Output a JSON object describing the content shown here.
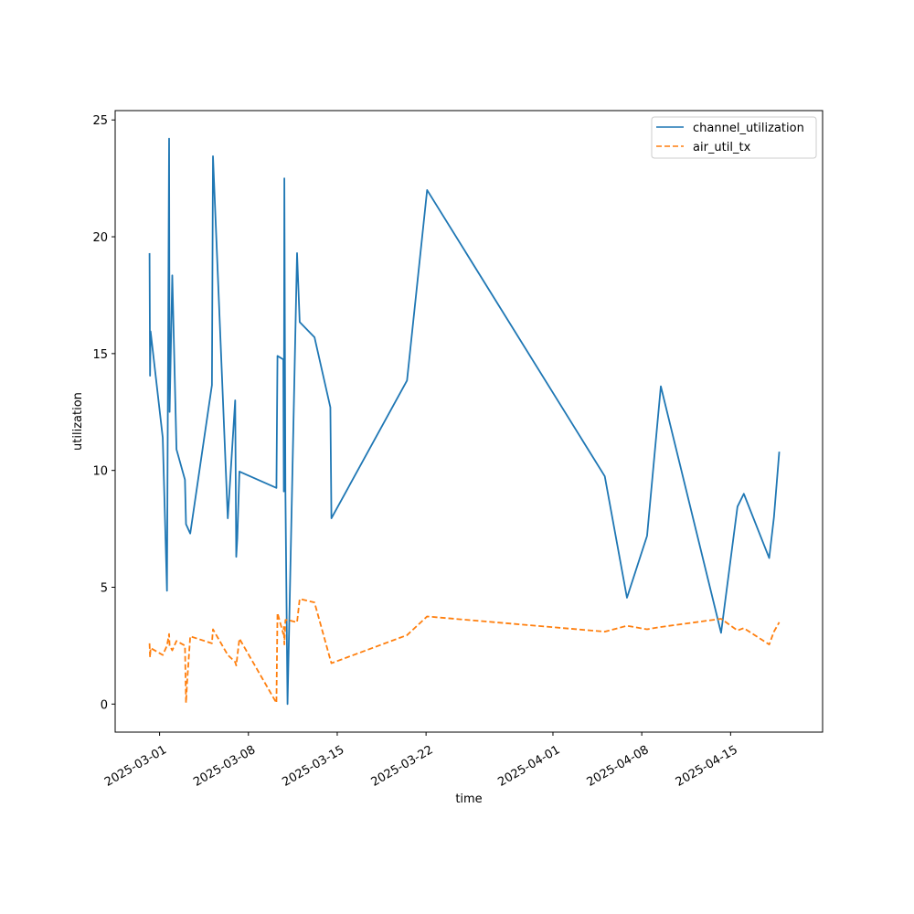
{
  "chart_data": {
    "type": "line",
    "xlabel": "time",
    "ylabel": "utilization",
    "x_type": "date",
    "xlim": [
      "2025-02-25T12:00",
      "2025-04-22T06:00"
    ],
    "ylim": [
      -1.2,
      25.4
    ],
    "x_ticks": [
      "2025-03-01",
      "2025-03-08",
      "2025-03-15",
      "2025-03-22",
      "2025-04-01",
      "2025-04-08",
      "2025-04-15"
    ],
    "y_ticks": [
      0,
      5,
      10,
      15,
      20,
      25
    ],
    "legend_position": "top-right",
    "grid": false,
    "series": [
      {
        "name": "channel_utilization",
        "color": "#1f77b4",
        "style": "solid",
        "points": [
          [
            "2025-02-28T05:00",
            19.3
          ],
          [
            "2025-02-28T06:00",
            14.05
          ],
          [
            "2025-02-28T07:00",
            15.95
          ],
          [
            "2025-03-01T06:00",
            11.4
          ],
          [
            "2025-03-01T14:00",
            4.85
          ],
          [
            "2025-03-01T18:00",
            24.2
          ],
          [
            "2025-03-01T19:00",
            12.5
          ],
          [
            "2025-03-02T00:00",
            18.35
          ],
          [
            "2025-03-02T08:00",
            10.9
          ],
          [
            "2025-03-03T00:00",
            9.6
          ],
          [
            "2025-03-03T02:00",
            7.7
          ],
          [
            "2025-03-03T10:00",
            7.3
          ],
          [
            "2025-03-05T03:00",
            13.65
          ],
          [
            "2025-03-05T05:00",
            23.45
          ],
          [
            "2025-03-06T09:00",
            7.95
          ],
          [
            "2025-03-06T23:00",
            13.0
          ],
          [
            "2025-03-07T01:00",
            6.3
          ],
          [
            "2025-03-07T03:00",
            7.1
          ],
          [
            "2025-03-07T07:00",
            9.95
          ],
          [
            "2025-03-10T05:00",
            9.25
          ],
          [
            "2025-03-10T07:00",
            14.9
          ],
          [
            "2025-03-10T18:00",
            14.75
          ],
          [
            "2025-03-10T19:00",
            9.1
          ],
          [
            "2025-03-10T20:00",
            22.5
          ],
          [
            "2025-03-10T22:00",
            9.1
          ],
          [
            "2025-03-11T02:00",
            0.0
          ],
          [
            "2025-03-11T20:00",
            19.3
          ],
          [
            "2025-03-12T01:00",
            16.35
          ],
          [
            "2025-03-13T05:00",
            15.7
          ],
          [
            "2025-03-14T11:00",
            12.7
          ],
          [
            "2025-03-14T13:00",
            7.95
          ],
          [
            "2025-03-20T12:00",
            13.85
          ],
          [
            "2025-03-22T02:00",
            22.0
          ],
          [
            "2025-04-05T02:00",
            9.75
          ],
          [
            "2025-04-06T20:00",
            4.55
          ],
          [
            "2025-04-08T10:00",
            7.2
          ],
          [
            "2025-04-09T12:00",
            13.6
          ],
          [
            "2025-04-14T06:00",
            3.05
          ],
          [
            "2025-04-15T13:00",
            8.45
          ],
          [
            "2025-04-16T01:00",
            9.0
          ],
          [
            "2025-04-18T01:00",
            6.25
          ],
          [
            "2025-04-18T10:00",
            8.0
          ],
          [
            "2025-04-18T20:00",
            10.8
          ]
        ]
      },
      {
        "name": "air_util_tx",
        "color": "#ff7f0e",
        "style": "dashed",
        "points": [
          [
            "2025-02-28T05:00",
            2.6
          ],
          [
            "2025-02-28T06:00",
            2.0
          ],
          [
            "2025-02-28T07:00",
            2.4
          ],
          [
            "2025-03-01T06:00",
            2.1
          ],
          [
            "2025-03-01T14:00",
            2.5
          ],
          [
            "2025-03-01T18:00",
            3.0
          ],
          [
            "2025-03-01T19:00",
            2.5
          ],
          [
            "2025-03-02T00:00",
            2.3
          ],
          [
            "2025-03-02T08:00",
            2.7
          ],
          [
            "2025-03-03T00:00",
            2.5
          ],
          [
            "2025-03-03T02:00",
            0.05
          ],
          [
            "2025-03-03T04:00",
            0.9
          ],
          [
            "2025-03-03T10:00",
            2.9
          ],
          [
            "2025-03-05T03:00",
            2.6
          ],
          [
            "2025-03-05T05:00",
            3.2
          ],
          [
            "2025-03-06T09:00",
            2.1
          ],
          [
            "2025-03-06T23:00",
            1.8
          ],
          [
            "2025-03-07T01:00",
            1.65
          ],
          [
            "2025-03-07T07:00",
            2.8
          ],
          [
            "2025-03-10T05:00",
            0.05
          ],
          [
            "2025-03-10T07:00",
            3.9
          ],
          [
            "2025-03-10T18:00",
            3.0
          ],
          [
            "2025-03-10T19:00",
            3.3
          ],
          [
            "2025-03-10T20:00",
            2.55
          ],
          [
            "2025-03-10T22:00",
            3.6
          ],
          [
            "2025-03-11T02:00",
            3.6
          ],
          [
            "2025-03-11T20:00",
            3.5
          ],
          [
            "2025-03-12T01:00",
            4.5
          ],
          [
            "2025-03-13T05:00",
            4.35
          ],
          [
            "2025-03-14T11:00",
            1.9
          ],
          [
            "2025-03-14T13:00",
            1.75
          ],
          [
            "2025-03-20T12:00",
            2.95
          ],
          [
            "2025-03-22T02:00",
            3.75
          ],
          [
            "2025-04-05T02:00",
            3.1
          ],
          [
            "2025-04-06T20:00",
            3.35
          ],
          [
            "2025-04-08T10:00",
            3.2
          ],
          [
            "2025-04-09T12:00",
            3.3
          ],
          [
            "2025-04-14T06:00",
            3.65
          ],
          [
            "2025-04-15T13:00",
            3.15
          ],
          [
            "2025-04-16T01:00",
            3.25
          ],
          [
            "2025-04-18T01:00",
            2.55
          ],
          [
            "2025-04-18T10:00",
            3.1
          ],
          [
            "2025-04-18T20:00",
            3.5
          ]
        ]
      }
    ]
  }
}
